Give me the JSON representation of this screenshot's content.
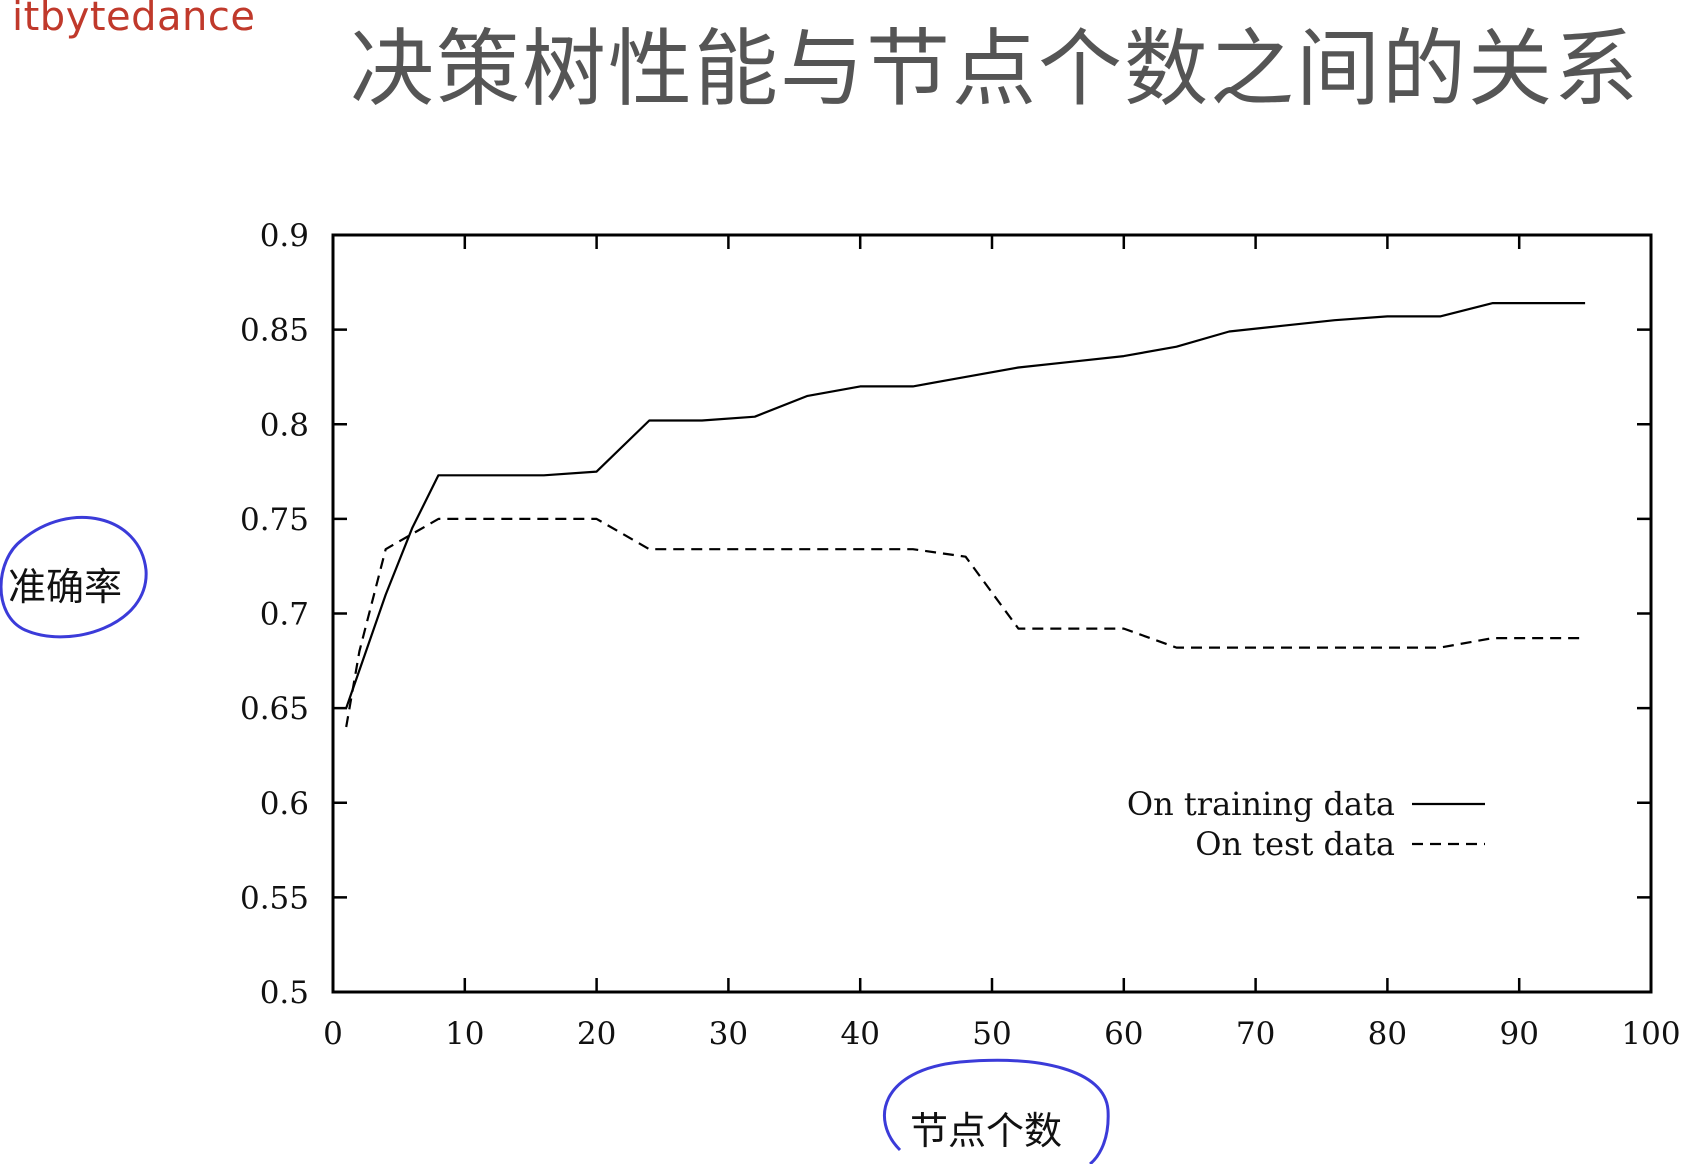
{
  "watermark": "itbytedance",
  "page_title": "决策树性能与节点个数之间的关系",
  "chart_data": {
    "type": "line",
    "title": "",
    "xlabel": "节点个数",
    "ylabel": "准确率",
    "xlim": [
      0,
      100
    ],
    "ylim": [
      0.5,
      0.9
    ],
    "xticks": [
      0,
      10,
      20,
      30,
      40,
      50,
      60,
      70,
      80,
      90,
      100
    ],
    "yticks": [
      0.5,
      0.55,
      0.6,
      0.65,
      0.7,
      0.75,
      0.8,
      0.85,
      0.9
    ],
    "xtick_labels": [
      "0",
      "10",
      "20",
      "30",
      "40",
      "50",
      "60",
      "70",
      "80",
      "90",
      "100"
    ],
    "ytick_labels": [
      "0.5",
      "0.55",
      "0.6",
      "0.65",
      "0.7",
      "0.75",
      "0.8",
      "0.85",
      "0.9"
    ],
    "grid": false,
    "legend_position": "lower-right",
    "series": [
      {
        "name": "On training data",
        "style": "solid",
        "color": "#000000",
        "x": [
          1,
          2,
          4,
          6,
          8,
          10,
          12,
          16,
          20,
          24,
          28,
          32,
          36,
          40,
          44,
          48,
          52,
          56,
          60,
          64,
          68,
          72,
          76,
          80,
          84,
          88,
          92,
          95
        ],
        "y": [
          0.65,
          0.67,
          0.71,
          0.745,
          0.773,
          0.773,
          0.773,
          0.773,
          0.775,
          0.802,
          0.802,
          0.804,
          0.815,
          0.82,
          0.82,
          0.825,
          0.83,
          0.833,
          0.836,
          0.841,
          0.849,
          0.852,
          0.855,
          0.857,
          0.857,
          0.864,
          0.864,
          0.864
        ]
      },
      {
        "name": "On test data",
        "style": "dashed",
        "color": "#000000",
        "x": [
          1,
          2,
          4,
          6,
          8,
          10,
          20,
          24,
          44,
          48,
          52,
          60,
          64,
          84,
          88,
          95
        ],
        "y": [
          0.64,
          0.68,
          0.734,
          0.742,
          0.75,
          0.75,
          0.75,
          0.734,
          0.734,
          0.73,
          0.692,
          0.692,
          0.682,
          0.682,
          0.687,
          0.687
        ]
      }
    ]
  },
  "annotations": {
    "circle_color": "#3b3bd9"
  }
}
